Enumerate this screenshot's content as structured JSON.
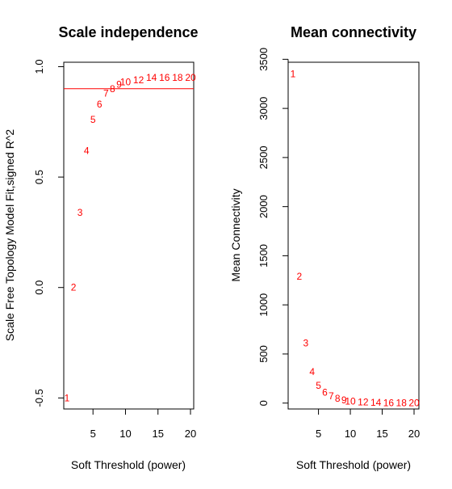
{
  "chart_data": [
    {
      "type": "scatter",
      "title": "Scale independence",
      "xlabel": "Soft Threshold (power)",
      "ylabel": "Scale Free Topology Model Fit,signed R^2",
      "xlim": [
        1,
        20
      ],
      "ylim": [
        -0.55,
        1.02
      ],
      "x_ticks": [
        "5",
        "10",
        "15",
        "20"
      ],
      "y_ticks": [
        "-0.5",
        "0.0",
        "0.5",
        "1.0"
      ],
      "reference_line": {
        "y": 0.9,
        "color": "#ff0000"
      },
      "point_color": "#ff0000",
      "points": [
        {
          "x": 1,
          "y": -0.5,
          "label": "1"
        },
        {
          "x": 2,
          "y": 0.0,
          "label": "2"
        },
        {
          "x": 3,
          "y": 0.34,
          "label": "3"
        },
        {
          "x": 4,
          "y": 0.62,
          "label": "4"
        },
        {
          "x": 5,
          "y": 0.76,
          "label": "5"
        },
        {
          "x": 6,
          "y": 0.83,
          "label": "6"
        },
        {
          "x": 7,
          "y": 0.88,
          "label": "7"
        },
        {
          "x": 8,
          "y": 0.9,
          "label": "8"
        },
        {
          "x": 9,
          "y": 0.92,
          "label": "9"
        },
        {
          "x": 10,
          "y": 0.93,
          "label": "10"
        },
        {
          "x": 12,
          "y": 0.94,
          "label": "12"
        },
        {
          "x": 14,
          "y": 0.95,
          "label": "14"
        },
        {
          "x": 16,
          "y": 0.95,
          "label": "16"
        },
        {
          "x": 18,
          "y": 0.95,
          "label": "18"
        },
        {
          "x": 20,
          "y": 0.95,
          "label": "20"
        }
      ]
    },
    {
      "type": "scatter",
      "title": "Mean connectivity",
      "xlabel": "Soft Threshold (power)",
      "ylabel": "Mean Connectivity",
      "xlim": [
        1,
        20
      ],
      "ylim": [
        -60,
        3470
      ],
      "x_ticks": [
        "5",
        "10",
        "15",
        "20"
      ],
      "y_ticks": [
        "0",
        "500",
        "1000",
        "1500",
        "2000",
        "2500",
        "3000",
        "3500"
      ],
      "point_color": "#ff0000",
      "points": [
        {
          "x": 1,
          "y": 3350,
          "label": "1"
        },
        {
          "x": 2,
          "y": 1290,
          "label": "2"
        },
        {
          "x": 3,
          "y": 610,
          "label": "3"
        },
        {
          "x": 4,
          "y": 320,
          "label": "4"
        },
        {
          "x": 5,
          "y": 180,
          "label": "5"
        },
        {
          "x": 6,
          "y": 110,
          "label": "6"
        },
        {
          "x": 7,
          "y": 70,
          "label": "7"
        },
        {
          "x": 8,
          "y": 45,
          "label": "8"
        },
        {
          "x": 9,
          "y": 30,
          "label": "9"
        },
        {
          "x": 10,
          "y": 20,
          "label": "10"
        },
        {
          "x": 12,
          "y": 10,
          "label": "12"
        },
        {
          "x": 14,
          "y": 5,
          "label": "14"
        },
        {
          "x": 16,
          "y": 3,
          "label": "16"
        },
        {
          "x": 18,
          "y": 2,
          "label": "18"
        },
        {
          "x": 20,
          "y": 1,
          "label": "20"
        }
      ]
    }
  ]
}
